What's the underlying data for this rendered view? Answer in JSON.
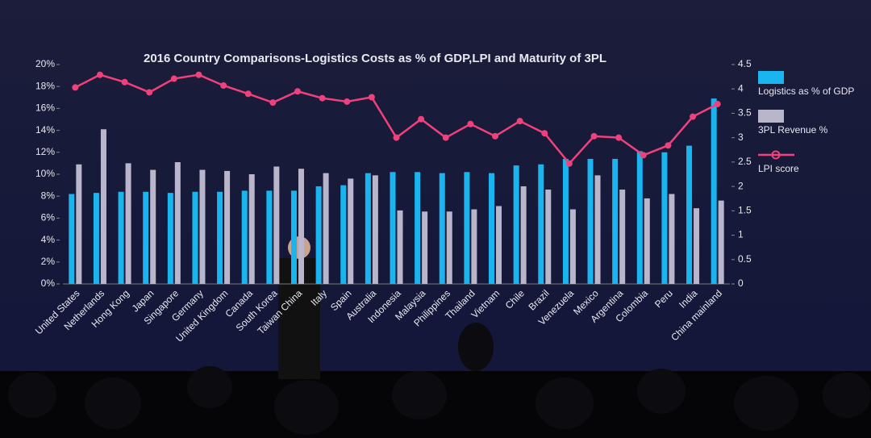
{
  "chart_data": {
    "type": "bar",
    "title": "2016 Country Comparisons-Logistics Costs as % of GDP,LPI and Maturity of 3PL",
    "categories": [
      "United States",
      "Netherlands",
      "Hong Kong",
      "Japan",
      "Singapore",
      "Germany",
      "United Kingdom",
      "Canada",
      "South Korea",
      "Taiwan China",
      "Italy",
      "Spain",
      "Australia",
      "Indonesia",
      "Malaysia",
      "Philippines",
      "Thailand",
      "Vietnam",
      "Chile",
      "Brazil",
      "Venezuela",
      "Mexico",
      "Argentina",
      "Colombia",
      "Peru",
      "India",
      "China mainland"
    ],
    "series": [
      {
        "name": "Logistics as % of GDP",
        "type": "bar",
        "color": "#1ab4ee",
        "values": [
          8.2,
          8.3,
          8.4,
          8.4,
          8.3,
          8.4,
          8.4,
          8.5,
          8.5,
          8.5,
          8.9,
          9.0,
          10.1,
          10.2,
          10.2,
          10.1,
          10.2,
          10.1,
          10.8,
          10.9,
          11.4,
          11.4,
          11.4,
          12.1,
          12.0,
          12.6,
          16.9
        ]
      },
      {
        "name": "3PL Revenue %",
        "type": "bar",
        "color": "#b9b6cc",
        "values": [
          10.9,
          14.1,
          11.0,
          10.4,
          11.1,
          10.4,
          10.3,
          10.0,
          10.7,
          10.5,
          10.1,
          9.6,
          9.9,
          6.7,
          6.6,
          6.6,
          6.8,
          7.1,
          8.9,
          8.6,
          6.8,
          9.9,
          8.6,
          7.8,
          8.2,
          6.9,
          7.6
        ]
      },
      {
        "name": "LPI score",
        "type": "line",
        "axis": "y2",
        "color": "#f0417c",
        "values": [
          4.03,
          4.29,
          4.14,
          3.93,
          4.21,
          4.29,
          4.07,
          3.9,
          3.72,
          3.95,
          3.81,
          3.74,
          3.83,
          3.0,
          3.38,
          3.0,
          3.28,
          3.03,
          3.34,
          3.09,
          2.47,
          3.03,
          3.0,
          2.64,
          2.84,
          3.43,
          3.69
        ]
      }
    ],
    "ylim": [
      0,
      20
    ],
    "yticks": [
      {
        "value": 0,
        "label": "0%"
      },
      {
        "value": 2,
        "label": "2%"
      },
      {
        "value": 4,
        "label": "4%"
      },
      {
        "value": 6,
        "label": "6%"
      },
      {
        "value": 8,
        "label": "8%"
      },
      {
        "value": 10,
        "label": "10%"
      },
      {
        "value": 12,
        "label": "12%"
      },
      {
        "value": 14,
        "label": "14%"
      },
      {
        "value": 16,
        "label": "16%"
      },
      {
        "value": 18,
        "label": "18%"
      },
      {
        "value": 20,
        "label": "20%"
      }
    ],
    "y2lim": [
      0,
      4.5
    ],
    "y2ticks": [
      0,
      0.5,
      1,
      1.5,
      2,
      2.5,
      3,
      3.5,
      4,
      4.5
    ],
    "legend": "right"
  }
}
